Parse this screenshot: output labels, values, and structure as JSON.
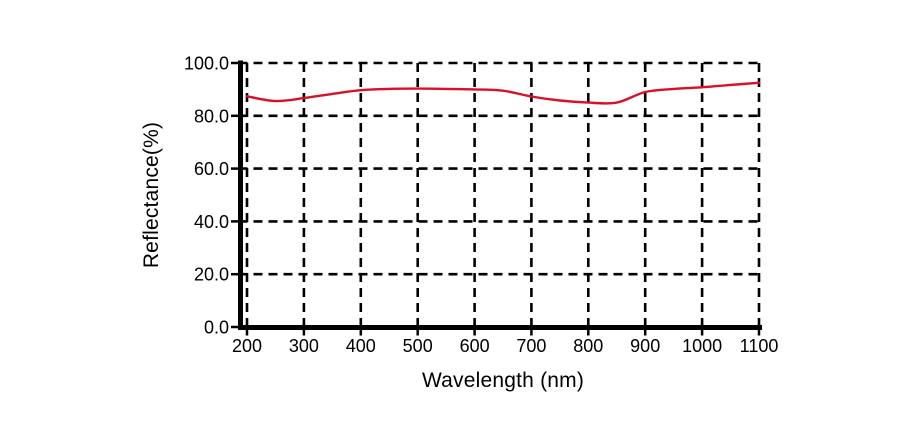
{
  "figure": {
    "background": "#ffffff"
  },
  "chart_data": {
    "type": "line",
    "title": "",
    "xlabel": "Wavelength (nm)",
    "ylabel": "Reflectance(%)",
    "xlim": [
      200,
      1100
    ],
    "ylim": [
      0,
      100
    ],
    "x_ticks": [
      200,
      300,
      400,
      500,
      600,
      700,
      800,
      900,
      1000,
      1100
    ],
    "x_tick_labels": [
      "200",
      "300",
      "400",
      "500",
      "600",
      "700",
      "800",
      "900",
      "1000",
      "1100"
    ],
    "y_ticks": [
      0,
      20,
      40,
      60,
      80,
      100
    ],
    "y_tick_labels": [
      "0.0",
      "20.0",
      "40.0",
      "60.0",
      "80.0",
      "100.0"
    ],
    "grid": "dashed",
    "grid_color": "#000000",
    "axis_color": "#000000",
    "line_color": "#d8102a",
    "legend": "none",
    "series": [
      {
        "name": "reflectance",
        "color": "#d8102a",
        "x": [
          200,
          250,
          300,
          350,
          400,
          450,
          500,
          550,
          600,
          650,
          700,
          750,
          800,
          850,
          900,
          950,
          1000,
          1050,
          1100
        ],
        "y": [
          87.4,
          85.6,
          86.7,
          88.3,
          89.7,
          90.2,
          90.3,
          90.2,
          90.0,
          89.5,
          87.3,
          85.8,
          85.0,
          85.0,
          89.0,
          90.2,
          90.8,
          91.7,
          92.5
        ]
      }
    ]
  }
}
